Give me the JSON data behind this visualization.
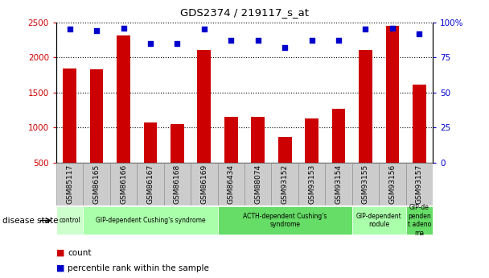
{
  "title": "GDS2374 / 219117_s_at",
  "samples": [
    "GSM85117",
    "GSM86165",
    "GSM86166",
    "GSM86167",
    "GSM86168",
    "GSM86169",
    "GSM86434",
    "GSM88074",
    "GSM93152",
    "GSM93153",
    "GSM93154",
    "GSM93155",
    "GSM93156",
    "GSM93157"
  ],
  "counts": [
    1840,
    1830,
    2310,
    1070,
    1050,
    2110,
    1150,
    1150,
    860,
    1130,
    1270,
    2110,
    2450,
    1610
  ],
  "percentiles": [
    95,
    94,
    96,
    85,
    85,
    95,
    87,
    87,
    82,
    87,
    87,
    95,
    96,
    92
  ],
  "bar_color": "#cc0000",
  "dot_color": "#0000cc",
  "ylim_left": [
    500,
    2500
  ],
  "ylim_right": [
    0,
    100
  ],
  "yticks_left": [
    500,
    1000,
    1500,
    2000,
    2500
  ],
  "yticks_right": [
    0,
    25,
    50,
    75,
    100
  ],
  "ytick_labels_right": [
    "0",
    "25",
    "50",
    "75",
    "100%"
  ],
  "disease_groups": [
    {
      "label": "control",
      "start": 0,
      "end": 1,
      "color": "#ccffcc"
    },
    {
      "label": "GIP-dependent Cushing's syndrome",
      "start": 1,
      "end": 6,
      "color": "#aaffaa"
    },
    {
      "label": "ACTH-dependent Cushing's\nsyndrome",
      "start": 6,
      "end": 11,
      "color": "#66dd66"
    },
    {
      "label": "GIP-dependent\nnodule",
      "start": 11,
      "end": 13,
      "color": "#aaffaa"
    },
    {
      "label": "GIP-de\npenden\nt adeno\nma",
      "start": 13,
      "end": 14,
      "color": "#66dd66"
    }
  ],
  "disease_state_label": "disease state",
  "legend_count_label": "count",
  "legend_percentile_label": "percentile rank within the sample",
  "bar_width": 0.5,
  "tick_label_color_left": "#cc0000",
  "tick_label_color_right": "#0000cc",
  "grid_linestyle": ":",
  "grid_color": "#000000",
  "grid_linewidth": 0.8,
  "sample_box_color": "#cccccc",
  "sample_box_edge": "#888888"
}
